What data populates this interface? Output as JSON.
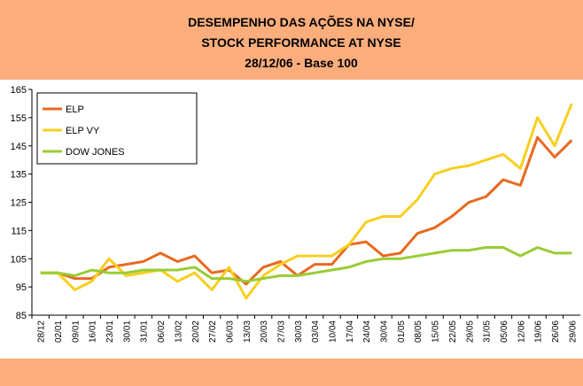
{
  "chart_data": {
    "type": "line",
    "title": [
      "DESEMPENHO DAS AÇÕES NA NYSE/",
      "STOCK PERFORMANCE AT NYSE",
      "28/12/06 - Base 100"
    ],
    "categories": [
      "28/12",
      "02/01",
      "09/01",
      "16/01",
      "23/01",
      "30/01",
      "31/01",
      "06/02",
      "13/02",
      "20/02",
      "27/02",
      "06/03",
      "13/03",
      "20/03",
      "27/03",
      "30/03",
      "03/04",
      "10/04",
      "17/04",
      "24/04",
      "30/04",
      "01/05",
      "08/05",
      "15/05",
      "22/05",
      "29/05",
      "31/05",
      "05/06",
      "12/06",
      "19/06",
      "26/06",
      "29/06"
    ],
    "series": [
      {
        "name": "ELP",
        "color": "#e8691f",
        "values": [
          100,
          100,
          98,
          98,
          102,
          103,
          104,
          107,
          104,
          106,
          100,
          101,
          96,
          102,
          104,
          99,
          103,
          103,
          110,
          111,
          106,
          107,
          114,
          116,
          120,
          125,
          127,
          133,
          131,
          148,
          141,
          147
        ]
      },
      {
        "name": "ELP VY",
        "color": "#f7cf1d",
        "values": [
          100,
          100,
          94,
          97,
          105,
          99,
          100,
          101,
          97,
          100,
          94,
          102,
          91,
          99,
          103,
          106,
          106,
          106,
          110,
          118,
          120,
          120,
          126,
          135,
          137,
          138,
          140,
          142,
          137,
          155,
          145,
          160
        ]
      },
      {
        "name": "DOW JONES",
        "color": "#99cc33",
        "values": [
          100,
          100,
          99,
          101,
          100,
          100,
          101,
          101,
          101,
          102,
          98,
          98,
          97,
          98,
          99,
          99,
          100,
          101,
          102,
          104,
          105,
          105,
          106,
          107,
          108,
          108,
          109,
          109,
          106,
          109,
          107,
          107
        ]
      }
    ],
    "ylim": [
      85,
      165
    ],
    "yticks": [
      85,
      95,
      105,
      115,
      125,
      135,
      145,
      155,
      165
    ],
    "legend": "top-left"
  }
}
